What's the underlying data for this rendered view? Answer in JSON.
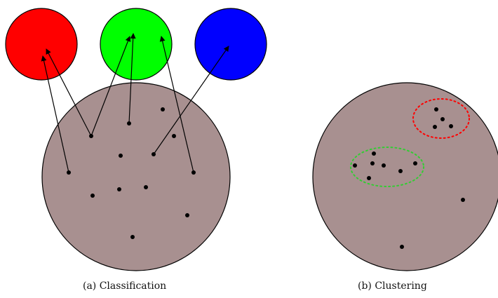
{
  "colors": {
    "cluster_fill": "#a89090",
    "class_red": "#ff0000",
    "class_green": "#00ff00",
    "class_blue": "#0000ff",
    "stroke": "#000000",
    "dot": "#000000",
    "red_cluster_outline": "#ff0000",
    "green_cluster_outline": "#33cc33"
  },
  "panels": {
    "classification": {
      "caption": "(a) Classification",
      "class_circles": [
        {
          "name": "red-class-circle",
          "color_key": "class_red"
        },
        {
          "name": "green-class-circle",
          "color_key": "class_green"
        },
        {
          "name": "blue-class-circle",
          "color_key": "class_blue"
        }
      ],
      "data_points_count": 12,
      "arrows": [
        {
          "from": "point-1",
          "to": "red-class"
        },
        {
          "from": "point-2",
          "to": "red-class"
        },
        {
          "from": "point-2",
          "to": "green-class"
        },
        {
          "from": "point-3",
          "to": "green-class"
        },
        {
          "from": "point-4",
          "to": "green-class"
        },
        {
          "from": "point-5",
          "to": "blue-class"
        }
      ]
    },
    "clustering": {
      "caption": "(b) Clustering",
      "clusters": [
        {
          "name": "red-dotted-cluster",
          "color_key": "red_cluster_outline",
          "points": 4
        },
        {
          "name": "green-dotted-cluster",
          "color_key": "green_cluster_outline",
          "points": 7
        }
      ],
      "outlier_points": 2
    }
  }
}
